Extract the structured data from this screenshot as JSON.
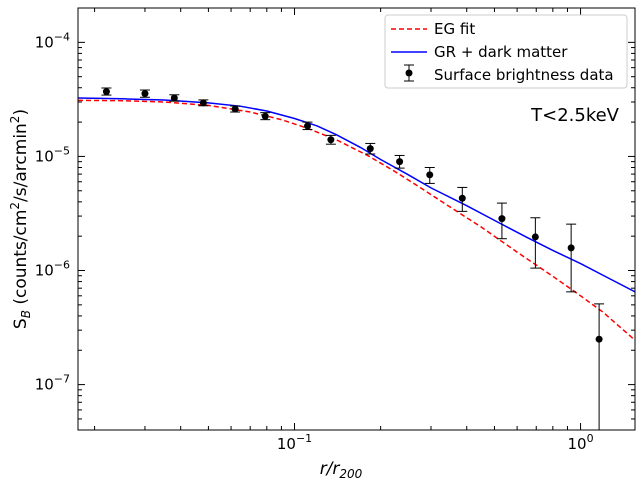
{
  "chart_data": {
    "type": "line",
    "title": "",
    "xlabel": "r/r",
    "xlabel_sub": "200",
    "ylabel_main": "S",
    "ylabel_sub": "B",
    "ylabel_units": "(counts/cm",
    "ylabel_units_mid": "/s/arcmin",
    "ylabel_close": ")",
    "annotation": "T<2.5keV",
    "xscale": "log",
    "yscale": "log",
    "xlim": [
      0.0175,
      1.55
    ],
    "ylim": [
      4e-08,
      0.0002
    ],
    "x_major_ticks": [
      {
        "value": 0.1,
        "base": "10",
        "exp": "−1"
      },
      {
        "value": 1.0,
        "base": "10",
        "exp": "0"
      }
    ],
    "y_major_ticks": [
      {
        "value": 1e-07,
        "base": "10",
        "exp": "−7"
      },
      {
        "value": 1e-06,
        "base": "10",
        "exp": "−6"
      },
      {
        "value": 1e-05,
        "base": "10",
        "exp": "−5"
      },
      {
        "value": 0.0001,
        "base": "10",
        "exp": "−4"
      }
    ],
    "legend": {
      "placement": "top-right",
      "entries": [
        {
          "label": "EG fit",
          "style": "dashed-line",
          "color": "#ff0000"
        },
        {
          "label": "GR + dark matter",
          "style": "line",
          "color": "#0000ff"
        },
        {
          "label": "Surface brightness data",
          "style": "errorbar-point",
          "color": "#000000"
        }
      ]
    },
    "series": [
      {
        "name": "EG fit",
        "kind": "line",
        "color": "#ff0000",
        "dash": true,
        "x": [
          0.0175,
          0.025,
          0.035,
          0.05,
          0.07,
          0.09,
          0.11,
          0.14,
          0.18,
          0.22,
          0.27,
          0.35,
          0.45,
          0.6,
          0.8,
          1.0,
          1.2,
          1.55
        ],
        "y": [
          3.1e-05,
          3.08e-05,
          3e-05,
          2.8e-05,
          2.45e-05,
          2.1e-05,
          1.78e-05,
          1.4e-05,
          1.02e-05,
          7.6e-06,
          5.5e-06,
          3.6e-06,
          2.4e-06,
          1.45e-06,
          8.9e-07,
          6e-07,
          4.3e-07,
          2.45e-07
        ]
      },
      {
        "name": "GR + dark matter",
        "kind": "line",
        "color": "#0000ff",
        "dash": false,
        "x": [
          0.0175,
          0.025,
          0.035,
          0.05,
          0.065,
          0.08,
          0.1,
          0.12,
          0.14,
          0.17,
          0.2,
          0.25,
          0.3,
          0.4,
          0.5,
          0.65,
          0.8,
          1.0,
          1.25,
          1.55
        ],
        "y": [
          3.25e-05,
          3.2e-05,
          3.12e-05,
          2.95e-05,
          2.75e-05,
          2.5e-05,
          2.15e-05,
          1.85e-05,
          1.55e-05,
          1.2e-05,
          9.4e-06,
          6.9e-06,
          5.3e-06,
          3.7e-06,
          2.75e-06,
          1.95e-06,
          1.5e-06,
          1.15e-06,
          8.6e-07,
          6.5e-07
        ]
      },
      {
        "name": "Surface brightness data",
        "kind": "errorbar",
        "color": "#000000",
        "x": [
          0.022,
          0.03,
          0.038,
          0.048,
          0.062,
          0.079,
          0.111,
          0.134,
          0.184,
          0.233,
          0.297,
          0.386,
          0.531,
          0.695,
          0.927,
          1.161
        ],
        "y": [
          3.7e-05,
          3.55e-05,
          3.25e-05,
          2.95e-05,
          2.6e-05,
          2.25e-05,
          1.85e-05,
          1.4e-05,
          1.17e-05,
          9e-06,
          6.9e-06,
          4.3e-06,
          2.85e-06,
          1.97e-06,
          1.58e-06,
          2.5e-07
        ],
        "ylow": [
          3.45e-05,
          3.3e-05,
          3.05e-05,
          2.78e-05,
          2.45e-05,
          2.1e-05,
          1.72e-05,
          1.28e-05,
          1.05e-05,
          7.9e-06,
          5.8e-06,
          3.3e-06,
          1.9e-06,
          1.05e-06,
          6.5e-07,
          2e-08
        ],
        "yhigh": [
          3.98e-05,
          3.82e-05,
          3.47e-05,
          3.13e-05,
          2.77e-05,
          2.42e-05,
          2e-05,
          1.53e-05,
          1.3e-05,
          1.02e-05,
          8e-06,
          5.35e-06,
          3.9e-06,
          2.9e-06,
          2.55e-06,
          5.1e-07
        ]
      }
    ]
  }
}
